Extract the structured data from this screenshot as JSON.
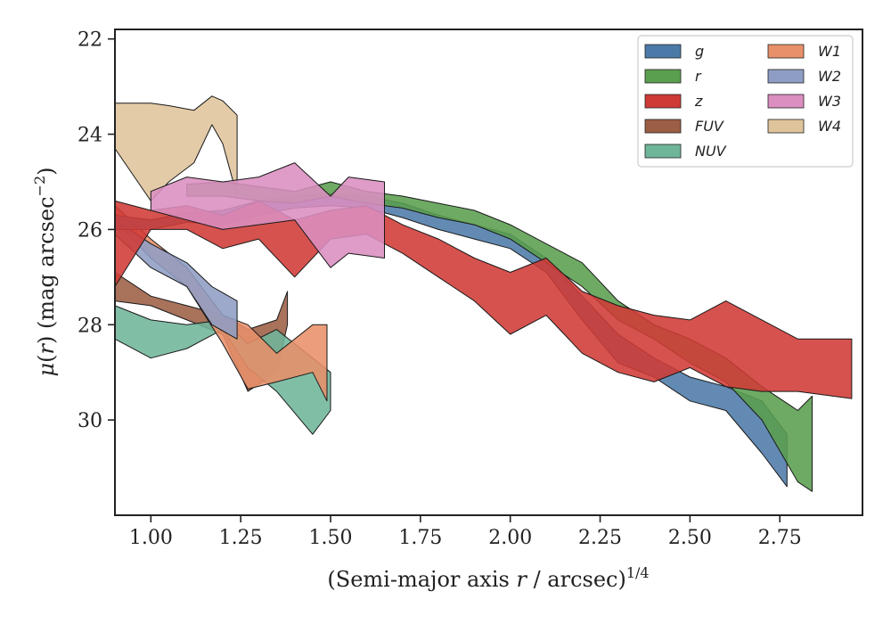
{
  "chart_data": {
    "type": "area",
    "xlabel": "(Semi-major axis r / arcsec)^{1/4}",
    "ylabel": "μ(r) (mag arcsec^{−2})",
    "xlim": [
      0.9,
      2.98
    ],
    "ylim": [
      32.0,
      21.8
    ],
    "y_inverted": true,
    "grid": false,
    "legend_position": "top-right",
    "legend_columns": 2,
    "xticks": [
      1.0,
      1.25,
      1.5,
      1.75,
      2.0,
      2.25,
      2.5,
      2.75
    ],
    "yticks": [
      22,
      24,
      26,
      28,
      30
    ],
    "series": [
      {
        "name": "g",
        "color": "#4c7aa8",
        "x": [
          0.9,
          1.0,
          1.1,
          1.2,
          1.3,
          1.4,
          1.5,
          1.6,
          1.7,
          1.8,
          1.9,
          2.0,
          2.1,
          2.2,
          2.3,
          2.4,
          2.5,
          2.6,
          2.7,
          2.77
        ],
        "y_bright": [
          25.7,
          25.8,
          25.65,
          25.6,
          25.4,
          25.3,
          25.25,
          25.3,
          25.45,
          25.7,
          25.9,
          26.1,
          26.6,
          27.4,
          28.2,
          28.7,
          29.1,
          29.3,
          29.6,
          30.3
        ],
        "y_faint": [
          26.0,
          26.0,
          25.85,
          25.9,
          25.7,
          25.55,
          25.5,
          25.55,
          25.75,
          26.0,
          26.2,
          26.4,
          26.9,
          27.9,
          28.8,
          29.1,
          29.6,
          29.8,
          30.7,
          31.4
        ]
      },
      {
        "name": "r",
        "color": "#5a9e4f",
        "x": [
          1.1,
          1.2,
          1.3,
          1.4,
          1.5,
          1.6,
          1.7,
          1.8,
          1.9,
          2.0,
          2.1,
          2.2,
          2.3,
          2.4,
          2.5,
          2.6,
          2.7,
          2.8,
          2.84
        ],
        "y_bright": [
          25.05,
          25.0,
          25.1,
          25.2,
          25.0,
          25.2,
          25.3,
          25.45,
          25.6,
          25.9,
          26.3,
          26.7,
          27.5,
          28.0,
          28.3,
          28.7,
          29.3,
          29.8,
          29.5
        ],
        "y_faint": [
          25.3,
          25.3,
          25.4,
          25.45,
          25.3,
          25.45,
          25.55,
          25.75,
          25.9,
          26.2,
          26.7,
          27.2,
          27.9,
          28.3,
          28.8,
          29.2,
          30.0,
          31.3,
          31.5
        ]
      },
      {
        "name": "z",
        "color": "#d03a36",
        "x": [
          0.9,
          1.0,
          1.1,
          1.2,
          1.3,
          1.4,
          1.5,
          1.6,
          1.7,
          1.8,
          1.9,
          2.0,
          2.1,
          2.2,
          2.3,
          2.4,
          2.5,
          2.6,
          2.7,
          2.8,
          2.95
        ],
        "y_bright": [
          25.4,
          25.6,
          25.5,
          25.7,
          25.4,
          25.8,
          25.6,
          25.5,
          25.9,
          26.2,
          26.6,
          26.9,
          26.6,
          27.3,
          27.6,
          27.8,
          27.9,
          27.5,
          27.9,
          28.3,
          28.3
        ],
        "y_faint": [
          27.2,
          26.0,
          26.0,
          26.4,
          26.2,
          27.0,
          26.2,
          26.1,
          26.5,
          27.0,
          27.5,
          28.2,
          27.8,
          28.6,
          29.0,
          29.2,
          28.9,
          29.3,
          29.4,
          29.4,
          29.55
        ]
      },
      {
        "name": "FUV",
        "color": "#9c5e44",
        "x": [
          0.9,
          1.0,
          1.1,
          1.2,
          1.27,
          1.35,
          1.38
        ],
        "y_bright": [
          26.9,
          27.4,
          27.6,
          27.8,
          28.1,
          27.9,
          27.3
        ],
        "y_faint": [
          27.5,
          27.6,
          27.9,
          28.2,
          29.4,
          29.0,
          28.0
        ]
      },
      {
        "name": "NUV",
        "color": "#6fb59a",
        "x": [
          0.9,
          1.0,
          1.1,
          1.2,
          1.27,
          1.35,
          1.45,
          1.5
        ],
        "y_bright": [
          27.6,
          27.9,
          28.0,
          27.9,
          28.4,
          28.1,
          28.7,
          29.0
        ],
        "y_faint": [
          28.3,
          28.7,
          28.5,
          28.1,
          28.9,
          29.4,
          30.3,
          29.8
        ]
      },
      {
        "name": "W1",
        "color": "#e8906a",
        "x": [
          0.9,
          1.0,
          1.1,
          1.2,
          1.27,
          1.35,
          1.45,
          1.49
        ],
        "y_bright": [
          25.5,
          26.2,
          26.8,
          27.8,
          28.0,
          28.6,
          28.0,
          28.0
        ],
        "y_faint": [
          25.8,
          26.6,
          27.2,
          28.4,
          29.35,
          29.2,
          29.0,
          29.6
        ]
      },
      {
        "name": "W2",
        "color": "#8e9dc4",
        "x": [
          0.9,
          1.0,
          1.1,
          1.17,
          1.24
        ],
        "y_bright": [
          25.8,
          26.3,
          26.7,
          27.2,
          27.5
        ],
        "y_faint": [
          26.1,
          26.8,
          27.2,
          28.0,
          28.3
        ]
      },
      {
        "name": "W3",
        "color": "#db8ec0",
        "x": [
          1.0,
          1.1,
          1.2,
          1.3,
          1.4,
          1.5,
          1.55,
          1.65
        ],
        "y_bright": [
          25.2,
          24.9,
          25.0,
          24.9,
          24.6,
          25.3,
          24.9,
          25.0
        ],
        "y_faint": [
          25.6,
          25.8,
          26.0,
          25.9,
          25.8,
          26.8,
          26.5,
          26.6
        ]
      },
      {
        "name": "W4",
        "color": "#dfc49b",
        "x": [
          0.9,
          1.0,
          1.05,
          1.12,
          1.17,
          1.2,
          1.24
        ],
        "y_bright": [
          23.35,
          23.35,
          23.4,
          23.5,
          23.2,
          23.3,
          23.6
        ],
        "y_faint": [
          24.3,
          25.4,
          25.0,
          24.6,
          23.8,
          24.2,
          25.3
        ]
      }
    ]
  }
}
